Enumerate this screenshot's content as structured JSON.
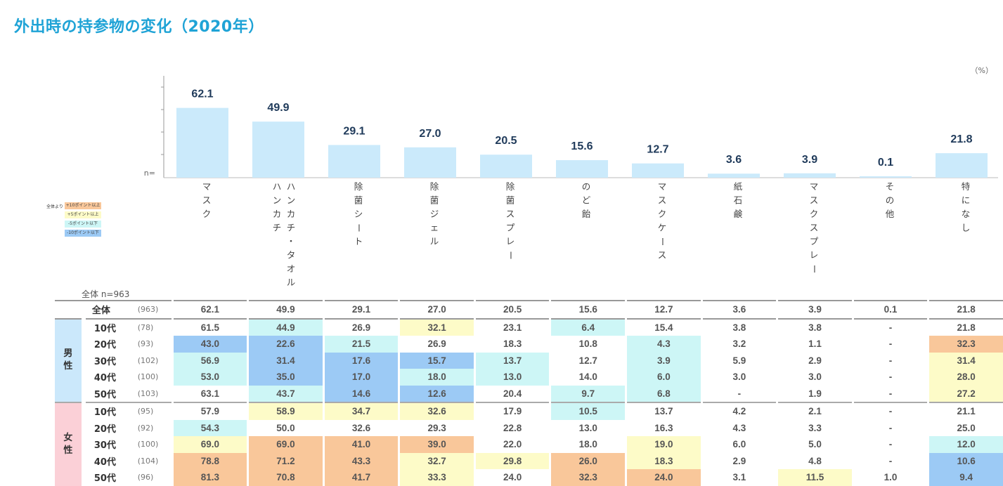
{
  "title": "外出時の持参物の変化（2020年）",
  "unit": "（%）",
  "axis_n_label": "n=",
  "total_label": "全体 n=963",
  "legend": {
    "header": "全体より",
    "items": [
      {
        "label": "+10ポイント以上",
        "color": "#f9c79a"
      },
      {
        "label": "+5ポイント以上",
        "color": "#fdfbc8"
      },
      {
        "label": "-5ポイント以下",
        "color": "#cdf6f6"
      },
      {
        "label": "-10ポイント以下",
        "color": "#9ccaf5"
      }
    ]
  },
  "colors": {
    "bar": "#cbeafb",
    "bar_label": "#1f3a5a",
    "p10": "#f9c79a",
    "p5": "#fdfbc8",
    "m5": "#cdf6f6",
    "m10": "#9ccaf5",
    "male_group": "#cbe8fb",
    "female_group": "#fbd0d7"
  },
  "chart_data": {
    "type": "bar",
    "title": "外出時の持参物の変化（2020年）",
    "categories": [
      "マスク",
      "ハンカチ・タオル",
      "除菌シート",
      "除菌ジェル",
      "除菌スプレー",
      "のど飴",
      "マスクケース",
      "紙石鹸",
      "マスクスプレー",
      "その他",
      "特になし"
    ],
    "category_label_lines": [
      [
        "マスク"
      ],
      [
        "ハンカチ・タオル",
        "ハンカチ"
      ],
      [
        "除菌シート"
      ],
      [
        "除菌ジェル"
      ],
      [
        "除菌スプレー"
      ],
      [
        "のど飴"
      ],
      [
        "マスクケース"
      ],
      [
        "紙石鹸"
      ],
      [
        "マスクスプレー"
      ],
      [
        "その他"
      ],
      [
        "特になし"
      ]
    ],
    "values": [
      62.1,
      49.9,
      29.1,
      27.0,
      20.5,
      15.6,
      12.7,
      3.6,
      3.9,
      0.1,
      21.8
    ],
    "value_labels": [
      "62.1",
      "49.9",
      "29.1",
      "27.0",
      "20.5",
      "15.6",
      "12.7",
      "3.6",
      "3.9",
      "0.1",
      "21.8"
    ],
    "xlabel": "",
    "ylabel": "",
    "ylim": [
      0,
      100
    ]
  },
  "table": {
    "total_row": {
      "label": "全体",
      "n": "(963)",
      "values": [
        "62.1",
        "49.9",
        "29.1",
        "27.0",
        "20.5",
        "15.6",
        "12.7",
        "3.6",
        "3.9",
        "0.1",
        "21.8"
      ]
    },
    "groups": [
      {
        "name_chars": [
          "男",
          "性"
        ],
        "group_color": "#cbe8fb",
        "rows": [
          {
            "age": "10代",
            "n": "(78)",
            "values": [
              "61.5",
              "44.9",
              "26.9",
              "32.1",
              "23.1",
              "6.4",
              "15.4",
              "3.8",
              "3.8",
              "-",
              "21.8"
            ],
            "tags": [
              "",
              "m5",
              "",
              "p5",
              "",
              "m5",
              "",
              "",
              "",
              "",
              ""
            ]
          },
          {
            "age": "20代",
            "n": "(93)",
            "values": [
              "43.0",
              "22.6",
              "21.5",
              "26.9",
              "18.3",
              "10.8",
              "4.3",
              "3.2",
              "1.1",
              "-",
              "32.3"
            ],
            "tags": [
              "m10",
              "m10",
              "m5",
              "",
              "",
              "",
              "m5",
              "",
              "",
              "",
              "p10"
            ]
          },
          {
            "age": "30代",
            "n": "(102)",
            "values": [
              "56.9",
              "31.4",
              "17.6",
              "15.7",
              "13.7",
              "12.7",
              "3.9",
              "5.9",
              "2.9",
              "-",
              "31.4"
            ],
            "tags": [
              "m5",
              "m10",
              "m10",
              "m10",
              "m5",
              "",
              "m5",
              "",
              "",
              "",
              "p5"
            ]
          },
          {
            "age": "40代",
            "n": "(100)",
            "values": [
              "53.0",
              "35.0",
              "17.0",
              "18.0",
              "13.0",
              "14.0",
              "6.0",
              "3.0",
              "3.0",
              "-",
              "28.0"
            ],
            "tags": [
              "m5",
              "m10",
              "m10",
              "m5",
              "m5",
              "",
              "m5",
              "",
              "",
              "",
              "p5"
            ]
          },
          {
            "age": "50代",
            "n": "(103)",
            "values": [
              "63.1",
              "43.7",
              "14.6",
              "12.6",
              "20.4",
              "9.7",
              "6.8",
              "-",
              "1.9",
              "-",
              "27.2"
            ],
            "tags": [
              "",
              "m5",
              "m10",
              "m10",
              "",
              "m5",
              "m5",
              "",
              "",
              "",
              "p5"
            ]
          }
        ]
      },
      {
        "name_chars": [
          "女",
          "性"
        ],
        "group_color": "#fbd0d7",
        "rows": [
          {
            "age": "10代",
            "n": "(95)",
            "values": [
              "57.9",
              "58.9",
              "34.7",
              "32.6",
              "17.9",
              "10.5",
              "13.7",
              "4.2",
              "2.1",
              "-",
              "21.1"
            ],
            "tags": [
              "",
              "p5",
              "p5",
              "p5",
              "",
              "m5",
              "",
              "",
              "",
              "",
              ""
            ]
          },
          {
            "age": "20代",
            "n": "(92)",
            "values": [
              "54.3",
              "50.0",
              "32.6",
              "29.3",
              "22.8",
              "13.0",
              "16.3",
              "4.3",
              "3.3",
              "-",
              "25.0"
            ],
            "tags": [
              "m5",
              "",
              "",
              "",
              "",
              "",
              "",
              "",
              "",
              "",
              ""
            ]
          },
          {
            "age": "30代",
            "n": "(100)",
            "values": [
              "69.0",
              "69.0",
              "41.0",
              "39.0",
              "22.0",
              "18.0",
              "19.0",
              "6.0",
              "5.0",
              "-",
              "12.0"
            ],
            "tags": [
              "p5",
              "p10",
              "p10",
              "p10",
              "",
              "",
              "p5",
              "",
              "",
              "",
              "m5"
            ]
          },
          {
            "age": "40代",
            "n": "(104)",
            "values": [
              "78.8",
              "71.2",
              "43.3",
              "32.7",
              "29.8",
              "26.0",
              "18.3",
              "2.9",
              "4.8",
              "-",
              "10.6"
            ],
            "tags": [
              "p10",
              "p10",
              "p10",
              "p5",
              "p5",
              "p10",
              "p5",
              "",
              "",
              "",
              "m10"
            ]
          },
          {
            "age": "50代",
            "n": "(96)",
            "values": [
              "81.3",
              "70.8",
              "41.7",
              "33.3",
              "24.0",
              "32.3",
              "24.0",
              "3.1",
              "11.5",
              "1.0",
              "9.4"
            ],
            "tags": [
              "p10",
              "p10",
              "p10",
              "p5",
              "",
              "p10",
              "p10",
              "",
              "p5",
              "",
              "m10"
            ]
          }
        ]
      }
    ]
  }
}
